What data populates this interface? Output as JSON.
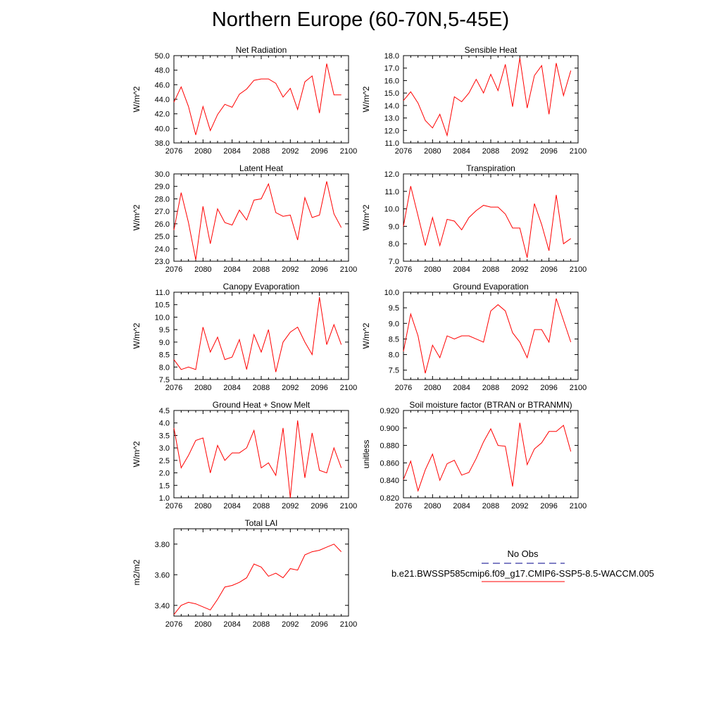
{
  "page_title": "Northern Europe (60-70N,5-45E)",
  "legend": {
    "obs_label": "No Obs",
    "obs_color": "#00008b",
    "model_label": "b.e21.BWSSP585cmip6.f09_g17.CMIP6-SSP5-8.5-WACCM.005",
    "model_color": "#ff0000"
  },
  "chart_data": [
    {
      "type": "line",
      "title": "Net Radiation",
      "ylabel": "W/m^2",
      "xlim": [
        2076,
        2100
      ],
      "ylim": [
        38.0,
        50.0
      ],
      "xticks": [
        "2076",
        "2080",
        "2084",
        "2088",
        "2092",
        "2096",
        "2100"
      ],
      "yticks": [
        "38.0",
        "40.0",
        "42.0",
        "44.0",
        "46.0",
        "48.0",
        "50.0"
      ],
      "ytick_values": [
        38,
        40,
        42,
        44,
        46,
        48,
        50
      ],
      "x": [
        2076,
        2077,
        2078,
        2079,
        2080,
        2081,
        2082,
        2083,
        2084,
        2085,
        2086,
        2087,
        2088,
        2089,
        2090,
        2091,
        2092,
        2093,
        2094,
        2095,
        2096,
        2097,
        2098,
        2099
      ],
      "series": [
        {
          "values": [
            43.6,
            45.7,
            43.0,
            39.1,
            43.0,
            39.7,
            41.9,
            43.3,
            42.9,
            44.7,
            45.4,
            46.6,
            46.8,
            46.8,
            46.2,
            44.3,
            45.5,
            42.6,
            46.4,
            47.2,
            42.1,
            48.9,
            44.6,
            44.6
          ]
        }
      ]
    },
    {
      "type": "line",
      "title": "Sensible Heat",
      "ylabel": "W/m^2",
      "xlim": [
        2076,
        2100
      ],
      "ylim": [
        11.0,
        18.0
      ],
      "xticks": [
        "2076",
        "2080",
        "2084",
        "2088",
        "2092",
        "2096",
        "2100"
      ],
      "yticks": [
        "11.0",
        "12.0",
        "13.0",
        "14.0",
        "15.0",
        "16.0",
        "17.0",
        "18.0"
      ],
      "ytick_values": [
        11,
        12,
        13,
        14,
        15,
        16,
        17,
        18
      ],
      "x": [
        2076,
        2077,
        2078,
        2079,
        2080,
        2081,
        2082,
        2083,
        2084,
        2085,
        2086,
        2087,
        2088,
        2089,
        2090,
        2091,
        2092,
        2093,
        2094,
        2095,
        2096,
        2097,
        2098,
        2099
      ],
      "series": [
        {
          "values": [
            14.4,
            15.1,
            14.2,
            12.8,
            12.2,
            13.3,
            11.6,
            14.7,
            14.3,
            15.0,
            16.1,
            15.0,
            16.5,
            15.2,
            17.3,
            13.9,
            17.8,
            13.8,
            16.4,
            17.2,
            13.3,
            17.4,
            14.8,
            16.8
          ]
        }
      ]
    },
    {
      "type": "line",
      "title": "Latent Heat",
      "ylabel": "W/m^2",
      "xlim": [
        2076,
        2100
      ],
      "ylim": [
        23.0,
        30.0
      ],
      "xticks": [
        "2076",
        "2080",
        "2084",
        "2088",
        "2092",
        "2096",
        "2100"
      ],
      "yticks": [
        "23.0",
        "24.0",
        "25.0",
        "26.0",
        "27.0",
        "28.0",
        "29.0",
        "30.0"
      ],
      "ytick_values": [
        23,
        24,
        25,
        26,
        27,
        28,
        29,
        30
      ],
      "x": [
        2076,
        2077,
        2078,
        2079,
        2080,
        2081,
        2082,
        2083,
        2084,
        2085,
        2086,
        2087,
        2088,
        2089,
        2090,
        2091,
        2092,
        2093,
        2094,
        2095,
        2096,
        2097,
        2098,
        2099
      ],
      "series": [
        {
          "values": [
            25.5,
            28.5,
            26.1,
            23.1,
            27.4,
            24.4,
            27.2,
            26.1,
            25.9,
            27.1,
            26.3,
            27.9,
            28.0,
            29.2,
            26.9,
            26.6,
            26.7,
            24.7,
            28.1,
            26.5,
            26.7,
            29.4,
            26.8,
            25.7
          ]
        }
      ]
    },
    {
      "type": "line",
      "title": "Transpiration",
      "ylabel": "W/m^2",
      "xlim": [
        2076,
        2100
      ],
      "ylim": [
        7.0,
        12.0
      ],
      "xticks": [
        "2076",
        "2080",
        "2084",
        "2088",
        "2092",
        "2096",
        "2100"
      ],
      "yticks": [
        "7.0",
        "8.0",
        "9.0",
        "10.0",
        "11.0",
        "12.0"
      ],
      "ytick_values": [
        7,
        8,
        9,
        10,
        11,
        12
      ],
      "x": [
        2076,
        2077,
        2078,
        2079,
        2080,
        2081,
        2082,
        2083,
        2084,
        2085,
        2086,
        2087,
        2088,
        2089,
        2090,
        2091,
        2092,
        2093,
        2094,
        2095,
        2096,
        2097,
        2098,
        2099
      ],
      "series": [
        {
          "values": [
            9.0,
            11.3,
            9.6,
            7.9,
            9.5,
            7.9,
            9.4,
            9.3,
            8.8,
            9.5,
            9.9,
            10.2,
            10.1,
            10.1,
            9.7,
            8.9,
            8.9,
            7.2,
            10.3,
            9.1,
            7.6,
            10.8,
            8.0,
            8.3
          ]
        }
      ]
    },
    {
      "type": "line",
      "title": "Canopy Evaporation",
      "ylabel": "W/m^2",
      "xlim": [
        2076,
        2100
      ],
      "ylim": [
        7.5,
        11.0
      ],
      "xticks": [
        "2076",
        "2080",
        "2084",
        "2088",
        "2092",
        "2096",
        "2100"
      ],
      "yticks": [
        "7.5",
        "8.0",
        "8.5",
        "9.0",
        "9.5",
        "10.0",
        "10.5",
        "11.0"
      ],
      "ytick_values": [
        7.5,
        8,
        8.5,
        9,
        9.5,
        10,
        10.5,
        11
      ],
      "x": [
        2076,
        2077,
        2078,
        2079,
        2080,
        2081,
        2082,
        2083,
        2084,
        2085,
        2086,
        2087,
        2088,
        2089,
        2090,
        2091,
        2092,
        2093,
        2094,
        2095,
        2096,
        2097,
        2098,
        2099
      ],
      "series": [
        {
          "values": [
            8.3,
            7.9,
            8.0,
            7.9,
            9.6,
            8.6,
            9.2,
            8.3,
            8.4,
            9.1,
            7.9,
            9.3,
            8.6,
            9.5,
            7.8,
            9.0,
            9.4,
            9.6,
            9.0,
            8.5,
            10.8,
            8.9,
            9.7,
            8.9
          ]
        }
      ]
    },
    {
      "type": "line",
      "title": "Ground Evaporation",
      "ylabel": "W/m^2",
      "xlim": [
        2076,
        2100
      ],
      "ylim": [
        7.2,
        10.0
      ],
      "xticks": [
        "2076",
        "2080",
        "2084",
        "2088",
        "2092",
        "2096",
        "2100"
      ],
      "yticks": [
        "7.5",
        "8.0",
        "8.5",
        "9.0",
        "9.5",
        "10.0"
      ],
      "ytick_values": [
        7.5,
        8,
        8.5,
        9,
        9.5,
        10
      ],
      "x": [
        2076,
        2077,
        2078,
        2079,
        2080,
        2081,
        2082,
        2083,
        2084,
        2085,
        2086,
        2087,
        2088,
        2089,
        2090,
        2091,
        2092,
        2093,
        2094,
        2095,
        2096,
        2097,
        2098,
        2099
      ],
      "series": [
        {
          "values": [
            8.1,
            9.3,
            8.6,
            7.4,
            8.3,
            7.9,
            8.6,
            8.5,
            8.6,
            8.6,
            8.5,
            8.4,
            9.4,
            9.6,
            9.4,
            8.7,
            8.4,
            7.9,
            8.8,
            8.8,
            8.4,
            9.8,
            9.1,
            8.4
          ]
        }
      ]
    },
    {
      "type": "line",
      "title": "Ground Heat + Snow Melt",
      "ylabel": "W/m^2",
      "xlim": [
        2076,
        2100
      ],
      "ylim": [
        1.0,
        4.5
      ],
      "xticks": [
        "2076",
        "2080",
        "2084",
        "2088",
        "2092",
        "2096",
        "2100"
      ],
      "yticks": [
        "1.0",
        "1.5",
        "2.0",
        "2.5",
        "3.0",
        "3.5",
        "4.0",
        "4.5"
      ],
      "ytick_values": [
        1,
        1.5,
        2,
        2.5,
        3,
        3.5,
        4,
        4.5
      ],
      "x": [
        2076,
        2077,
        2078,
        2079,
        2080,
        2081,
        2082,
        2083,
        2084,
        2085,
        2086,
        2087,
        2088,
        2089,
        2090,
        2091,
        2092,
        2093,
        2094,
        2095,
        2096,
        2097,
        2098,
        2099
      ],
      "series": [
        {
          "values": [
            3.8,
            2.2,
            2.7,
            3.3,
            3.4,
            2.0,
            3.1,
            2.5,
            2.8,
            2.8,
            3.0,
            3.7,
            2.2,
            2.4,
            1.9,
            3.8,
            1.0,
            4.1,
            1.8,
            3.6,
            2.1,
            2.0,
            3.0,
            2.2
          ]
        }
      ]
    },
    {
      "type": "line",
      "title": "Soil moisture factor (BTRAN or BTRANMN)",
      "ylabel": "unitless",
      "xlim": [
        2076,
        2100
      ],
      "ylim": [
        0.82,
        0.92
      ],
      "xticks": [
        "2076",
        "2080",
        "2084",
        "2088",
        "2092",
        "2096",
        "2100"
      ],
      "yticks": [
        "0.820",
        "0.840",
        "0.860",
        "0.880",
        "0.900",
        "0.920"
      ],
      "ytick_values": [
        0.82,
        0.84,
        0.86,
        0.88,
        0.9,
        0.92
      ],
      "x": [
        2076,
        2077,
        2078,
        2079,
        2080,
        2081,
        2082,
        2083,
        2084,
        2085,
        2086,
        2087,
        2088,
        2089,
        2090,
        2091,
        2092,
        2093,
        2094,
        2095,
        2096,
        2097,
        2098,
        2099
      ],
      "series": [
        {
          "values": [
            0.841,
            0.862,
            0.828,
            0.852,
            0.87,
            0.84,
            0.859,
            0.863,
            0.846,
            0.849,
            0.865,
            0.884,
            0.899,
            0.88,
            0.879,
            0.833,
            0.906,
            0.858,
            0.876,
            0.883,
            0.896,
            0.896,
            0.903,
            0.873
          ]
        }
      ]
    },
    {
      "type": "line",
      "title": "Total LAI",
      "ylabel": "m2/m2",
      "xlim": [
        2076,
        2100
      ],
      "ylim": [
        3.33,
        3.9
      ],
      "xticks": [
        "2076",
        "2080",
        "2084",
        "2088",
        "2092",
        "2096",
        "2100"
      ],
      "yticks": [
        "3.40",
        "3.60",
        "3.80"
      ],
      "ytick_values": [
        3.4,
        3.6,
        3.8
      ],
      "x": [
        2076,
        2077,
        2078,
        2079,
        2080,
        2081,
        2082,
        2083,
        2084,
        2085,
        2086,
        2087,
        2088,
        2089,
        2090,
        2091,
        2092,
        2093,
        2094,
        2095,
        2096,
        2097,
        2098,
        2099
      ],
      "series": [
        {
          "values": [
            3.34,
            3.4,
            3.42,
            3.41,
            3.39,
            3.37,
            3.44,
            3.52,
            3.53,
            3.55,
            3.58,
            3.67,
            3.65,
            3.59,
            3.61,
            3.58,
            3.64,
            3.63,
            3.73,
            3.75,
            3.76,
            3.78,
            3.8,
            3.75
          ]
        }
      ]
    }
  ]
}
